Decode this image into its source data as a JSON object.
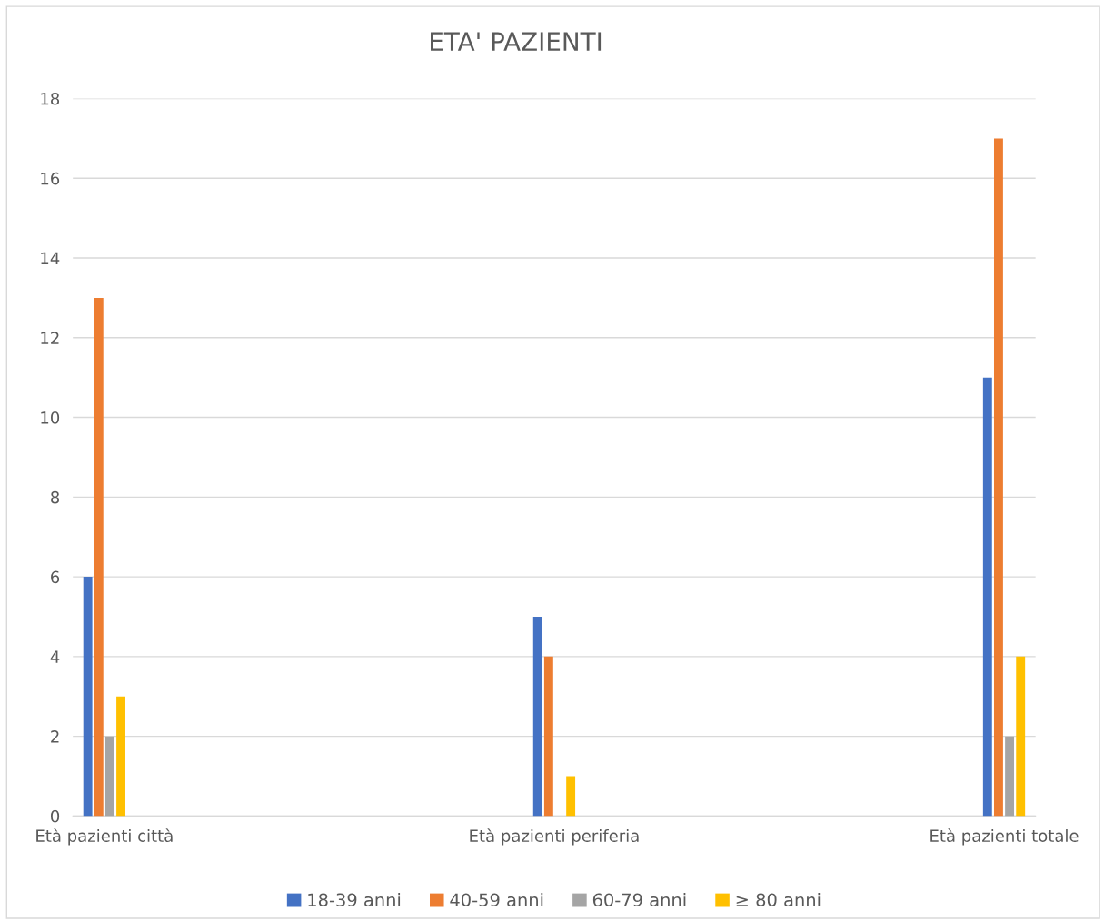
{
  "chart_data": {
    "type": "bar",
    "title": "ETA' PAZIENTI",
    "categories": [
      "Età pazienti città",
      "Età pazienti periferia",
      "Età pazienti totale"
    ],
    "series": [
      {
        "name": "18-39 anni",
        "color": "#4472c4",
        "values": [
          6,
          5,
          11
        ]
      },
      {
        "name": "40-59 anni",
        "color": "#ed7d31",
        "values": [
          13,
          4,
          17
        ]
      },
      {
        "name": "60-79 anni",
        "color": "#a5a5a5",
        "values": [
          2,
          0,
          2
        ]
      },
      {
        "name": "≥ 80 anni",
        "color": "#ffc000",
        "values": [
          3,
          1,
          4
        ]
      }
    ],
    "ylim": [
      0,
      18
    ],
    "yticks": [
      0,
      2,
      4,
      6,
      8,
      10,
      12,
      14,
      16,
      18
    ],
    "grid": "y",
    "legend": "bottom"
  }
}
